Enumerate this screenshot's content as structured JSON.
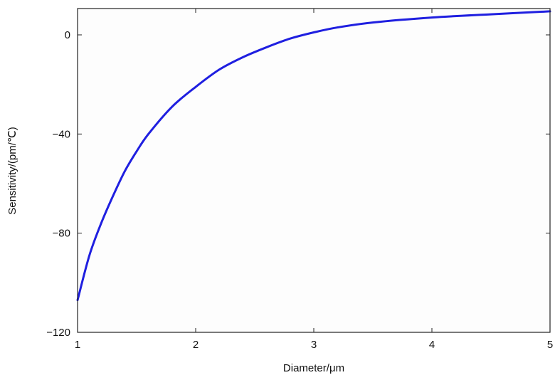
{
  "chart_data": {
    "type": "line",
    "title": "",
    "xlabel": "Diameter/μm",
    "ylabel": "Sensitivity/(pm/℃)",
    "xlim": [
      1,
      5
    ],
    "ylim": [
      -120,
      10
    ],
    "xticks": [
      1,
      2,
      3,
      4,
      5
    ],
    "xtick_labels": [
      "1",
      "2",
      "3",
      "4",
      "5"
    ],
    "yticks": [
      0,
      -40,
      -80,
      -120
    ],
    "ytick_labels": [
      "0",
      "−40",
      "−80",
      "−120"
    ],
    "grid": false,
    "legend": "none",
    "series": [
      {
        "color": "#1f1fe0",
        "x": [
          1.0,
          1.1,
          1.2,
          1.3,
          1.4,
          1.5,
          1.6,
          1.8,
          2.0,
          2.2,
          2.4,
          2.6,
          2.8,
          3.0,
          3.2,
          3.5,
          4.0,
          4.5,
          5.0
        ],
        "y": [
          -107,
          -89,
          -76,
          -65,
          -55,
          -47,
          -40,
          -29,
          -21,
          -14,
          -9,
          -5,
          -1.5,
          1,
          3,
          5,
          7,
          8.3,
          9.5
        ]
      }
    ]
  }
}
